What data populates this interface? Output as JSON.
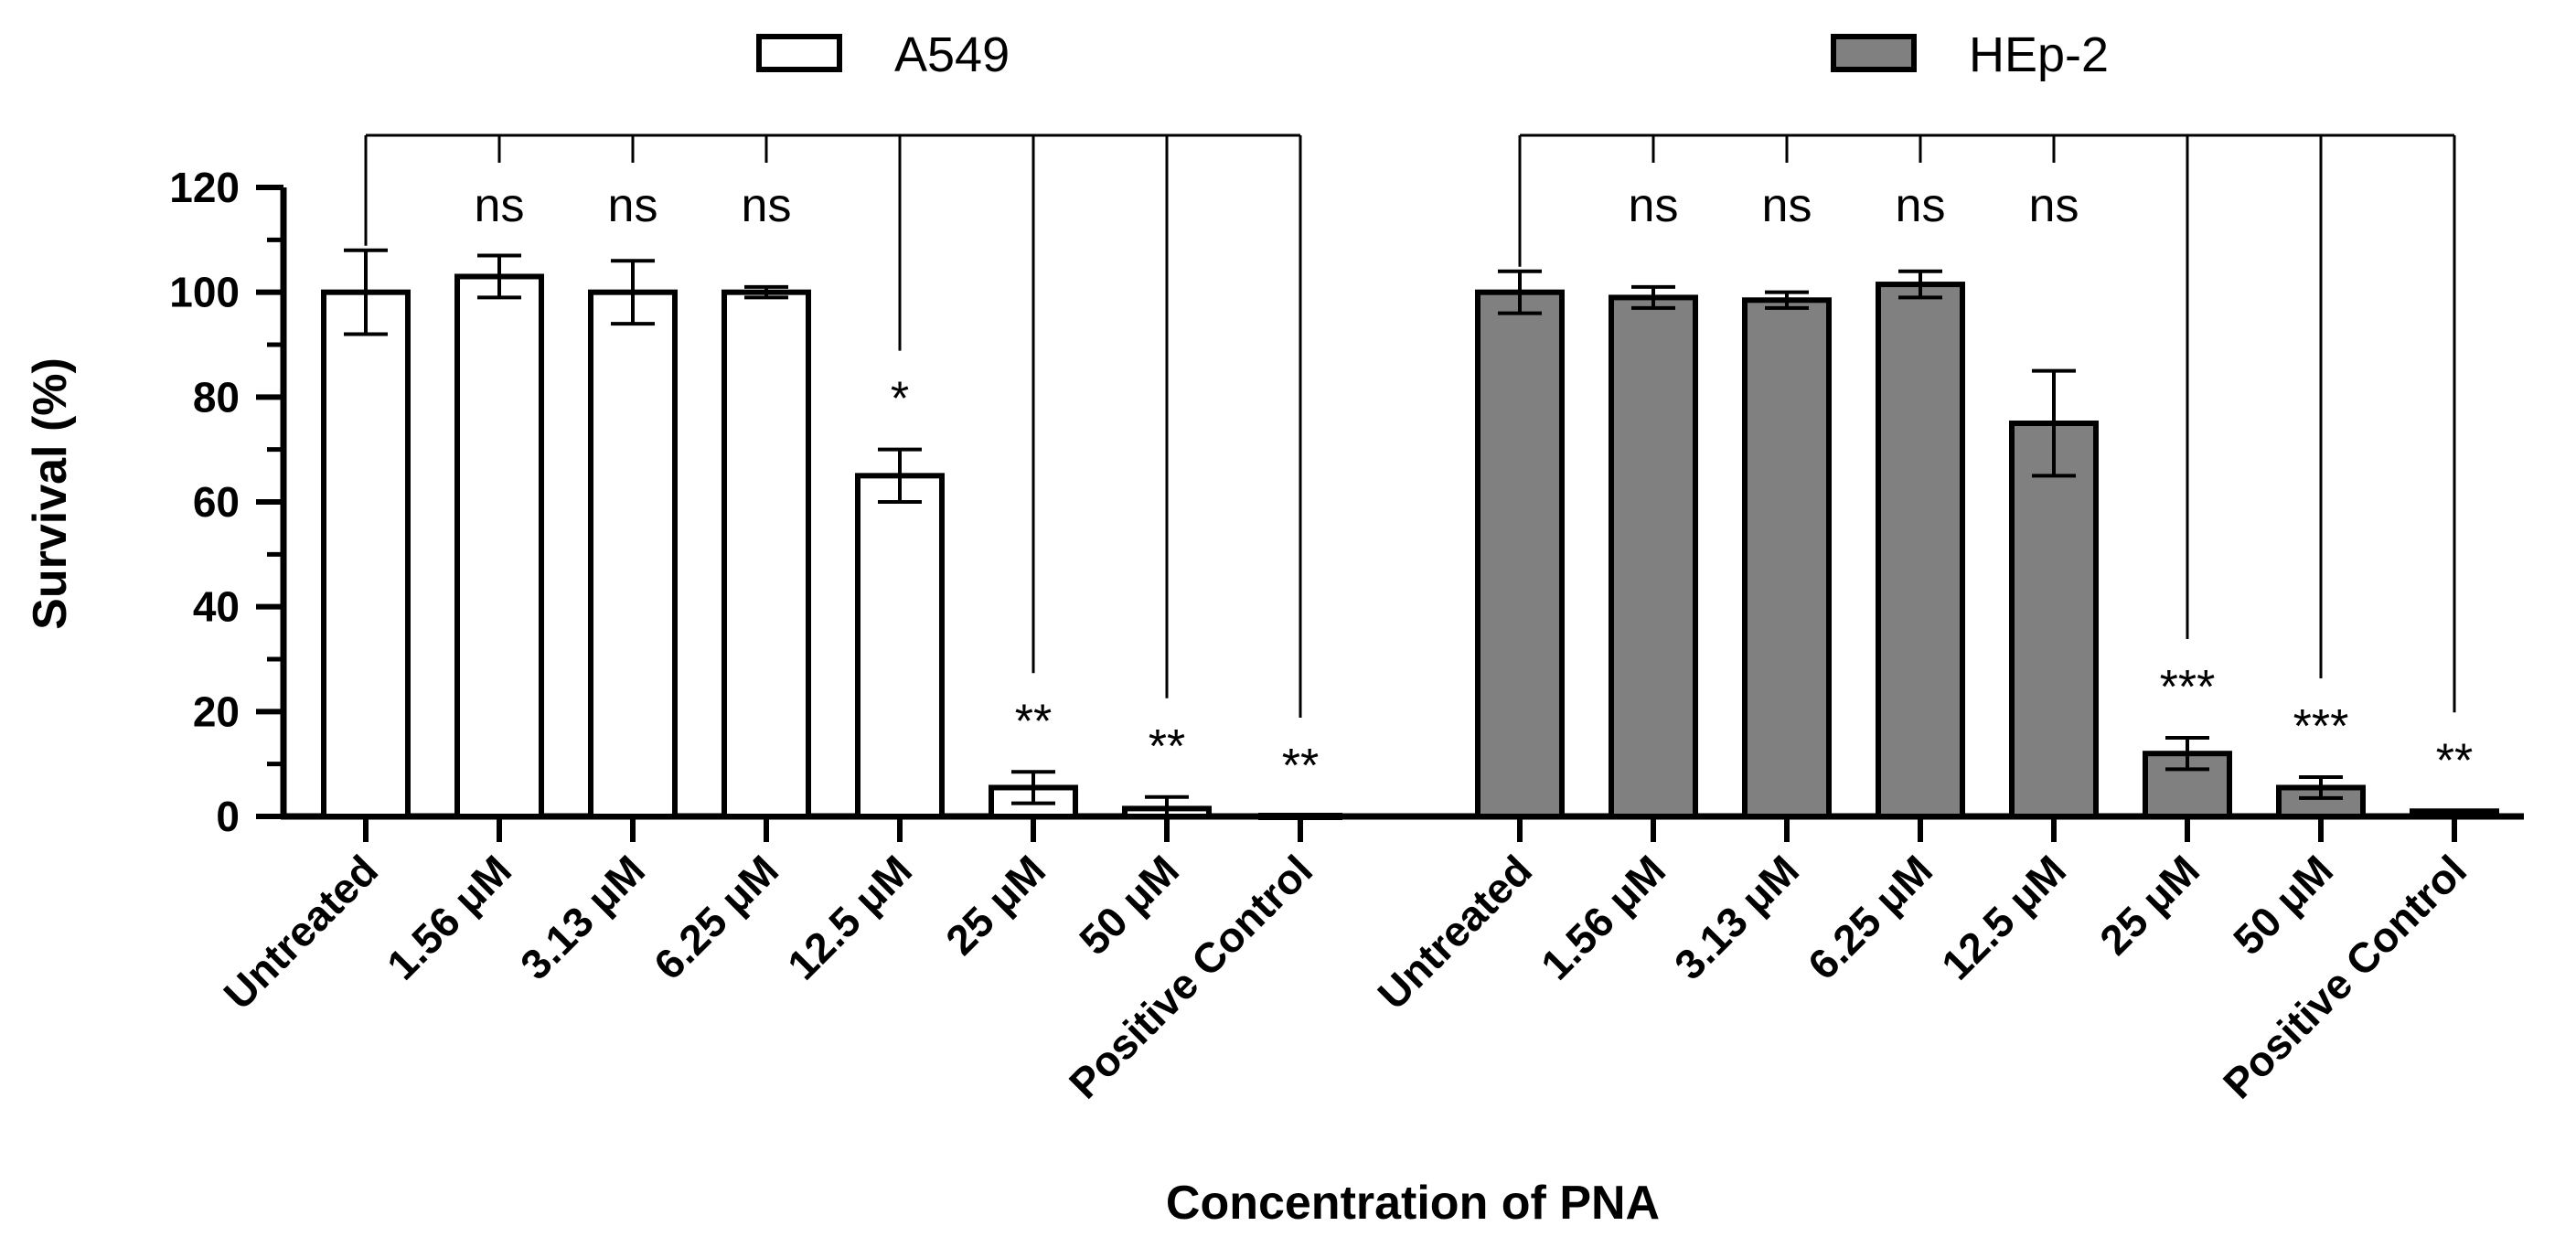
{
  "chart_data": {
    "type": "bar",
    "title": "",
    "xlabel": "Concentration of PNA",
    "ylabel": "Survival (%)",
    "ylim": [
      0,
      120
    ],
    "yticks": [
      "0",
      "20",
      "40",
      "60",
      "80",
      "100",
      "120"
    ],
    "grid": false,
    "legend": "top",
    "categories": [
      "Untreated",
      "1.56 μM",
      "3.13 μM",
      "6.25 μM",
      "12.5 μM",
      "25 μM",
      "50 μM",
      "Positive Control"
    ],
    "series": [
      {
        "name": "A549",
        "color": "#ffffff",
        "values": [
          100,
          103,
          100,
          100,
          65,
          5.5,
          1.5,
          0
        ],
        "errors": [
          8,
          4,
          6,
          1,
          5,
          3,
          2.2,
          0
        ],
        "significance": [
          "",
          "ns",
          "ns",
          "ns",
          "*",
          "**",
          "**",
          "**"
        ]
      },
      {
        "name": "HEp-2",
        "color": "#808080",
        "values": [
          100,
          99,
          98.5,
          101.5,
          75,
          12,
          5.5,
          1
        ],
        "errors": [
          4,
          2,
          1.5,
          2.5,
          10,
          3,
          2,
          0
        ],
        "significance": [
          "",
          "ns",
          "ns",
          "ns",
          "ns",
          "***",
          "***",
          "**"
        ]
      }
    ]
  }
}
